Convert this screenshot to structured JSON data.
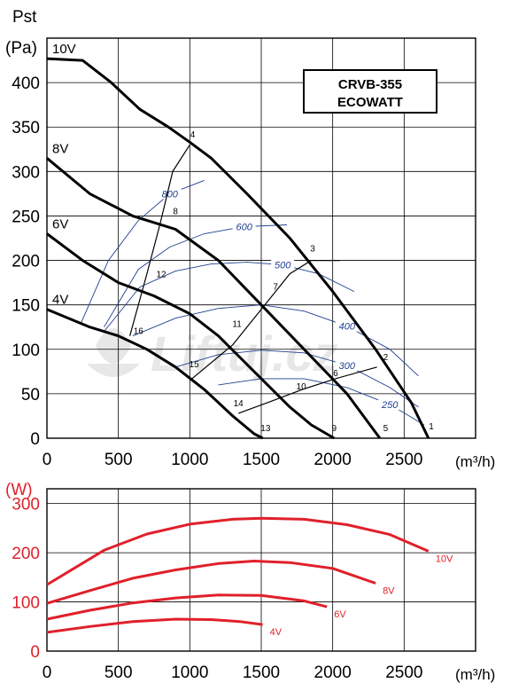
{
  "chart_data": [
    {
      "type": "line",
      "ylabel_line1": "Pst",
      "ylabel_line2": "(Pa)",
      "xlabel": "(m³/h)",
      "xlim": [
        0,
        3000
      ],
      "ylim": [
        0,
        450
      ],
      "x_ticks": [
        0,
        500,
        1000,
        1500,
        2000,
        2500
      ],
      "y_ticks": [
        0,
        50,
        100,
        150,
        200,
        250,
        300,
        350,
        400
      ],
      "grid": true,
      "legend_box": {
        "line1": "CRVB-355",
        "line2": "ECOWATT",
        "placement": "top-right"
      },
      "colors": {
        "fan_curve": "#000000",
        "power_line": "#1f3f8f",
        "watermark": "#cccccc"
      },
      "watermark": "Liftuj.cz",
      "series": [
        {
          "name": "10V",
          "x": [
            0,
            250,
            450,
            650,
            850,
            1000,
            1150,
            1400,
            1700,
            2000,
            2300,
            2550,
            2670
          ],
          "y": [
            427,
            425,
            400,
            370,
            350,
            333,
            315,
            275,
            225,
            165,
            100,
            40,
            0
          ]
        },
        {
          "name": "8V",
          "x": [
            0,
            300,
            600,
            900,
            1200,
            1500,
            1800,
            2100,
            2330
          ],
          "y": [
            315,
            275,
            250,
            235,
            200,
            150,
            100,
            50,
            0
          ]
        },
        {
          "name": "6V",
          "x": [
            0,
            250,
            500,
            750,
            1000,
            1200,
            1450,
            1700,
            1850,
            2010
          ],
          "y": [
            230,
            200,
            175,
            160,
            140,
            115,
            75,
            35,
            15,
            0
          ]
        },
        {
          "name": "4V",
          "x": [
            0,
            300,
            500,
            700,
            900,
            1100,
            1300,
            1450,
            1510
          ],
          "y": [
            145,
            125,
            115,
            100,
            80,
            55,
            25,
            5,
            0
          ]
        }
      ],
      "system_lines": [
        {
          "label": "1",
          "x": [
            2680
          ],
          "y": [
            0
          ]
        },
        {
          "label": "2",
          "x": [
            1340,
            1560,
            1790,
            2020,
            2310
          ],
          "y": [
            28,
            41,
            55,
            67,
            80
          ]
        },
        {
          "label": "3",
          "x": [
            1000,
            1300,
            1500,
            1700,
            1850,
            2050
          ],
          "y": [
            65,
            105,
            145,
            185,
            200,
            200
          ]
        },
        {
          "label": "4",
          "x": [
            580,
            700,
            790,
            880,
            1000
          ],
          "y": [
            115,
            185,
            240,
            300,
            330
          ]
        }
      ],
      "point_labels": [
        {
          "text": "1",
          "x": 2690,
          "y": 10
        },
        {
          "text": "2",
          "x": 2370,
          "y": 88
        },
        {
          "text": "3",
          "x": 1860,
          "y": 210
        },
        {
          "text": "4",
          "x": 1020,
          "y": 338
        },
        {
          "text": "5",
          "x": 2370,
          "y": 8
        },
        {
          "text": "6",
          "x": 2020,
          "y": 70
        },
        {
          "text": "7",
          "x": 1600,
          "y": 167
        },
        {
          "text": "8",
          "x": 900,
          "y": 252
        },
        {
          "text": "9",
          "x": 2010,
          "y": 8
        },
        {
          "text": "10",
          "x": 1780,
          "y": 55
        },
        {
          "text": "11",
          "x": 1330,
          "y": 125
        },
        {
          "text": "12",
          "x": 800,
          "y": 181
        },
        {
          "text": "13",
          "x": 1530,
          "y": 8
        },
        {
          "text": "14",
          "x": 1340,
          "y": 36
        },
        {
          "text": "15",
          "x": 1030,
          "y": 80
        },
        {
          "text": "16",
          "x": 640,
          "y": 117
        }
      ],
      "power_contours": [
        {
          "label": "800",
          "x": [
            240,
            430,
            640,
            860,
            1100
          ],
          "y": [
            130,
            200,
            245,
            275,
            290
          ]
        },
        {
          "label": "600",
          "x": [
            400,
            640,
            860,
            1100,
            1380,
            1680
          ],
          "y": [
            125,
            190,
            215,
            230,
            238,
            240
          ]
        },
        {
          "label": "500",
          "x": [
            400,
            650,
            900,
            1150,
            1400,
            1650,
            1900,
            2150
          ],
          "y": [
            120,
            170,
            188,
            196,
            198,
            195,
            185,
            165
          ]
        },
        {
          "label": "400",
          "x": [
            600,
            900,
            1200,
            1500,
            1800,
            2100,
            2400,
            2600
          ],
          "y": [
            115,
            135,
            146,
            150,
            143,
            126,
            100,
            70
          ]
        },
        {
          "label": "300",
          "x": [
            900,
            1200,
            1500,
            1800,
            2100,
            2400,
            2600
          ],
          "y": [
            80,
            94,
            99,
            96,
            82,
            57,
            35
          ]
        },
        {
          "label": "250",
          "x": [
            1200,
            1500,
            1800,
            2100,
            2400,
            2640
          ],
          "y": [
            60,
            67,
            67,
            57,
            38,
            15
          ]
        }
      ]
    },
    {
      "type": "line",
      "ylabel": "(W)",
      "xlabel": "(m³/h)",
      "xlim": [
        0,
        3000
      ],
      "ylim": [
        0,
        330
      ],
      "x_ticks": [
        0,
        500,
        1000,
        1500,
        2000,
        2500
      ],
      "y_ticks": [
        0,
        100,
        200,
        300
      ],
      "grid": true,
      "colors": {
        "line": "#e0202a",
        "axis_labels": "#e0202a"
      },
      "series": [
        {
          "name": "10V",
          "x": [
            0,
            200,
            400,
            700,
            1000,
            1300,
            1500,
            1800,
            2100,
            2400,
            2670
          ],
          "y": [
            135,
            170,
            205,
            238,
            258,
            268,
            270,
            268,
            257,
            237,
            203
          ]
        },
        {
          "name": "8V",
          "x": [
            0,
            300,
            600,
            900,
            1200,
            1450,
            1700,
            2000,
            2300
          ],
          "y": [
            97,
            123,
            148,
            165,
            178,
            183,
            180,
            168,
            138
          ]
        },
        {
          "name": "6V",
          "x": [
            0,
            300,
            600,
            900,
            1200,
            1500,
            1800,
            1960
          ],
          "y": [
            65,
            83,
            98,
            108,
            114,
            113,
            102,
            90
          ]
        },
        {
          "name": "4V",
          "x": [
            0,
            300,
            600,
            900,
            1150,
            1350,
            1510
          ],
          "y": [
            38,
            50,
            60,
            65,
            64,
            60,
            54
          ]
        }
      ]
    }
  ]
}
